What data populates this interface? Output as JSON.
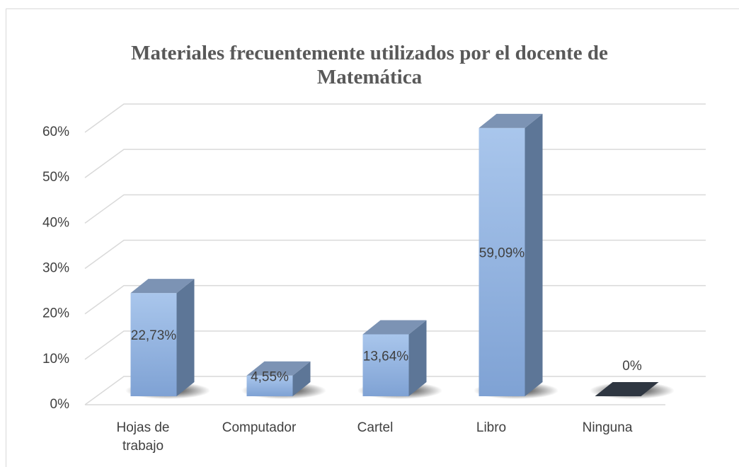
{
  "chart_data": {
    "type": "bar3d",
    "title": "Materiales frecuentemente utilizados por el docente de Matemática",
    "categories": [
      "Hojas de trabajo",
      "Computador",
      "Cartel",
      "Libro",
      "Ninguna"
    ],
    "values": [
      22.73,
      4.55,
      13.64,
      59.09,
      0
    ],
    "value_labels": [
      "22,73%",
      "4,55%",
      "13,64%",
      "59,09%",
      "0%"
    ],
    "color": "#8fb0de",
    "ylim": [
      0,
      60
    ],
    "yticks": [
      {
        "value": 0,
        "label": "0%"
      },
      {
        "value": 10,
        "label": "10%"
      },
      {
        "value": 20,
        "label": "20%"
      },
      {
        "value": 30,
        "label": "30%"
      },
      {
        "value": 40,
        "label": "40%"
      },
      {
        "value": 50,
        "label": "50%"
      },
      {
        "value": 60,
        "label": "60%"
      }
    ],
    "grid": true
  }
}
